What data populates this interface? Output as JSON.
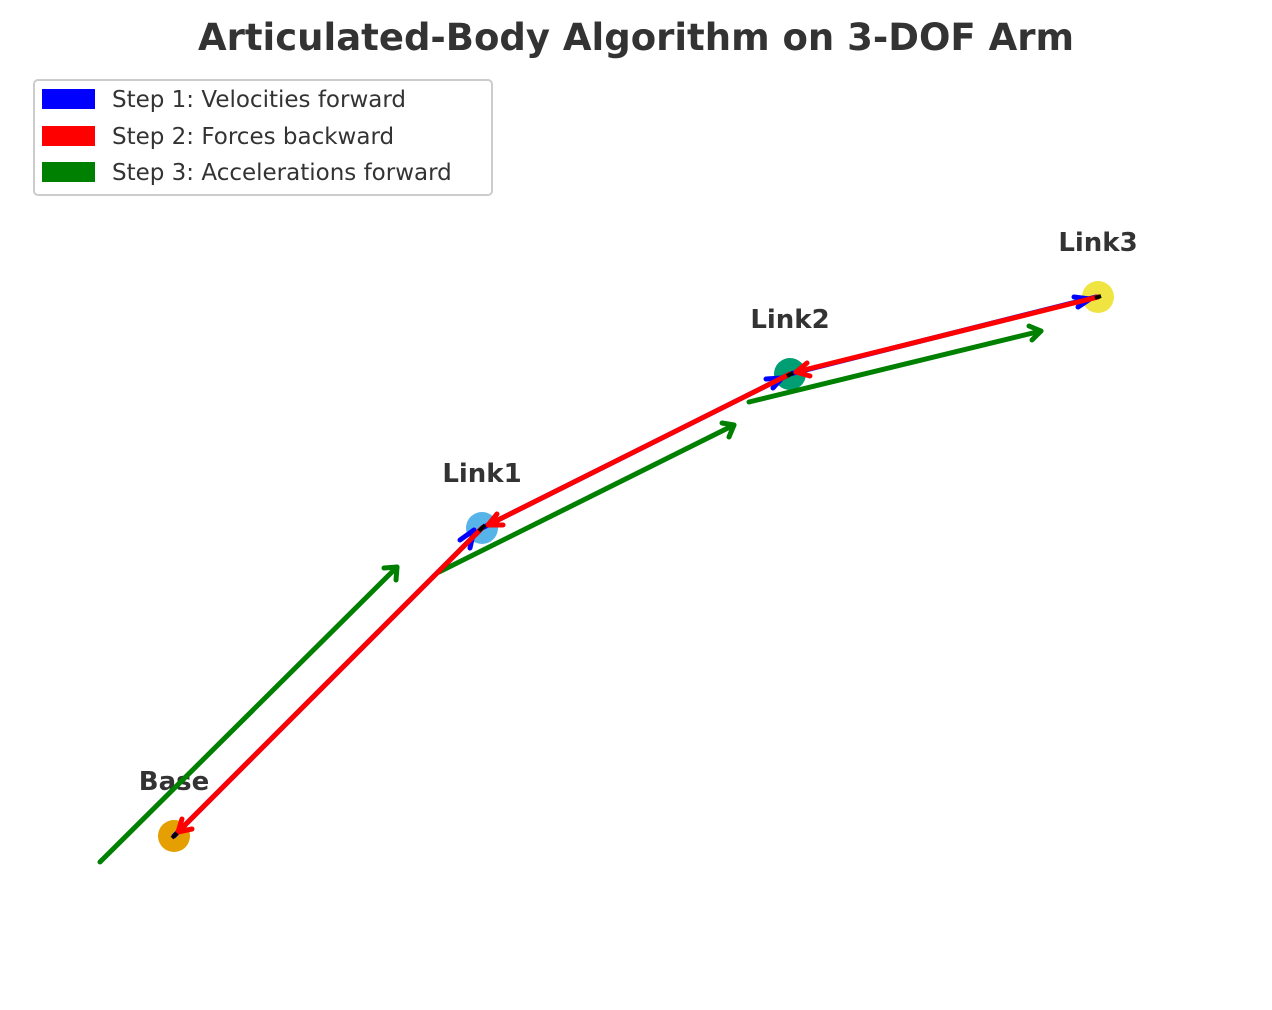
{
  "title": "Articulated-Body Algorithm on 3-DOF Arm",
  "legend": {
    "items": [
      {
        "label": "Step 1: Velocities forward",
        "color": "#0000ff"
      },
      {
        "label": "Step 2: Forces backward",
        "color": "#ff0000"
      },
      {
        "label": "Step 3: Accelerations forward",
        "color": "#008000"
      }
    ]
  },
  "nodes": [
    {
      "id": "base",
      "label": "Base",
      "color": "#e69f00"
    },
    {
      "id": "link1",
      "label": "Link1",
      "color": "#56b4e9"
    },
    {
      "id": "link2",
      "label": "Link2",
      "color": "#009e73"
    },
    {
      "id": "link3",
      "label": "Link3",
      "color": "#f0e442"
    }
  ],
  "arrows": [
    {
      "step": 1,
      "from": "base",
      "to": "link1"
    },
    {
      "step": 1,
      "from": "link1",
      "to": "link2"
    },
    {
      "step": 1,
      "from": "link2",
      "to": "link3"
    },
    {
      "step": 2,
      "from": "link3",
      "to": "link2"
    },
    {
      "step": 2,
      "from": "link2",
      "to": "link1"
    },
    {
      "step": 2,
      "from": "link1",
      "to": "base"
    },
    {
      "step": 3,
      "from": "base",
      "to": "link1"
    },
    {
      "step": 3,
      "from": "link1",
      "to": "link2"
    },
    {
      "step": 3,
      "from": "link2",
      "to": "link3"
    }
  ]
}
